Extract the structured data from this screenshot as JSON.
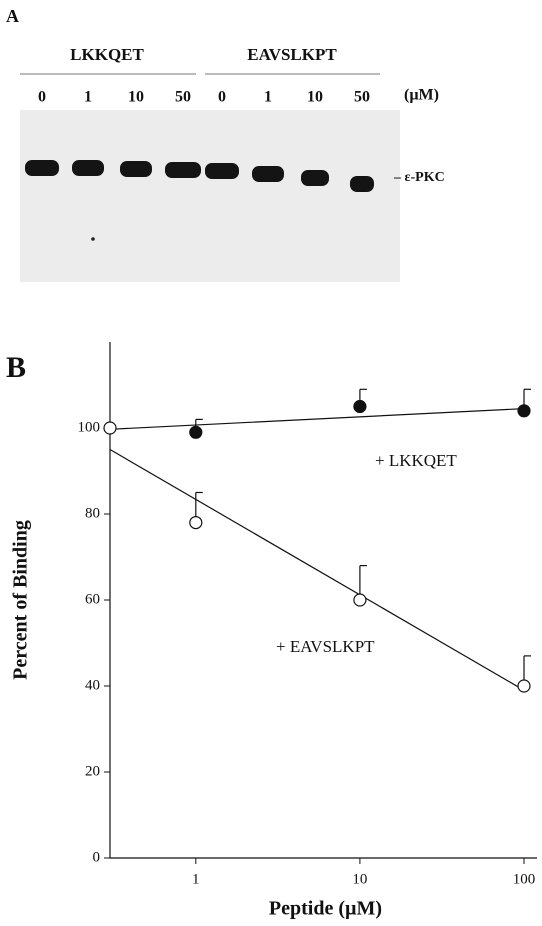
{
  "blot": {
    "panel_label": "A",
    "groups": [
      {
        "name": "LKKQET",
        "lanes": [
          "0",
          "1",
          "10",
          "50"
        ]
      },
      {
        "name": "EAVSLKPT",
        "lanes": [
          "0",
          "1",
          "10",
          "50"
        ]
      }
    ],
    "unit": "(µM)",
    "band_label": "– ε-PKC"
  },
  "chart_data": {
    "type": "scatter",
    "panel_label": "B",
    "xlabel": "Peptide (µM)",
    "ylabel": "Percent of Binding",
    "xscale": "log",
    "xlim": [
      0.3,
      120
    ],
    "xticks": [
      1,
      10,
      100
    ],
    "ylim": [
      0,
      120
    ],
    "yticks": [
      0,
      20,
      40,
      60,
      80,
      100
    ],
    "series": [
      {
        "name": "+ LKKQET",
        "marker": "filled",
        "color": "#111111",
        "x": [
          1,
          10,
          100
        ],
        "values": [
          99,
          105,
          104
        ],
        "errors": [
          3,
          4,
          5
        ],
        "fit_x": [
          0.3,
          100
        ],
        "fit_values": [
          99.7,
          104.5
        ]
      },
      {
        "name": "+ EAVSLKPT",
        "marker": "open",
        "color": "#111111",
        "x": [
          0.3,
          1,
          10,
          100
        ],
        "values": [
          100,
          78,
          60,
          40
        ],
        "errors": [
          null,
          7,
          8,
          7
        ],
        "fit_x": [
          0.3,
          100
        ],
        "fit_values": [
          95,
          39
        ]
      }
    ]
  }
}
